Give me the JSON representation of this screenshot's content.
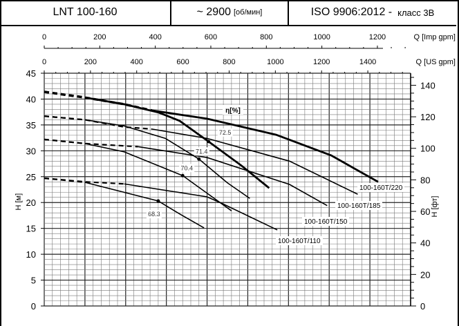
{
  "header": {
    "model": "LNT 100-160",
    "speed_value": "~ 2900",
    "speed_unit": "[об/мин]",
    "standard": "ISO 9906:2012 -",
    "class_label": "класс 3B"
  },
  "chart_data": {
    "type": "line",
    "x_unit": "m3/h",
    "xlim": [
      0,
      360
    ],
    "ylim": [
      0,
      45
    ],
    "ylabel": "H [м]",
    "ylabel_right": "H [фт]",
    "grid": true,
    "top_axes": [
      {
        "label": "Q [Imp gpm]",
        "ticks": [
          0,
          200,
          400,
          600,
          800,
          1000,
          1200
        ],
        "m3h_per_unit": 0.2728
      },
      {
        "label": "Q [US gpm]",
        "ticks": [
          0,
          200,
          400,
          600,
          800,
          1000,
          1200,
          1400
        ],
        "m3h_per_unit": 0.2271
      }
    ],
    "y_ticks": [
      0,
      5,
      10,
      15,
      20,
      25,
      30,
      35,
      40,
      45
    ],
    "y_right_ticks": [
      0,
      20,
      40,
      60,
      80,
      100,
      120,
      140
    ],
    "ft_per_m": 3.281,
    "efficiency_label": "η[%]",
    "head_curves": [
      {
        "name": "100-160T/220",
        "dashed": [
          [
            0,
            41.4
          ],
          [
            40,
            40.3
          ],
          [
            78.6,
            39.0
          ],
          [
            105.8,
            37.8
          ]
        ],
        "solid": [
          [
            105.8,
            37.8
          ],
          [
            160,
            36.2
          ],
          [
            227.8,
            33.1
          ],
          [
            282,
            29.1
          ],
          [
            328,
            24.0
          ]
        ]
      },
      {
        "name": "100-160T/185",
        "dashed": [
          [
            0,
            36.7
          ],
          [
            40,
            36.0
          ],
          [
            78.6,
            34.6
          ],
          [
            105.8,
            34.2
          ]
        ],
        "solid": [
          [
            105.8,
            34.2
          ],
          [
            160,
            32.4
          ],
          [
            241,
            28.0
          ],
          [
            308,
            21.6
          ]
        ]
      },
      {
        "name": "100-160T/150",
        "dashed": [
          [
            0,
            32.2
          ],
          [
            40,
            31.4
          ],
          [
            92,
            30.8
          ]
        ],
        "solid": [
          [
            92,
            30.8
          ],
          [
            160,
            28.7
          ],
          [
            241,
            23.5
          ],
          [
            278,
            19.4
          ]
        ]
      },
      {
        "name": "100-160T/110",
        "dashed": [
          [
            0,
            24.7
          ],
          [
            40,
            24.0
          ],
          [
            78.6,
            23.6
          ]
        ],
        "solid": [
          [
            78.6,
            23.6
          ],
          [
            160,
            21.1
          ],
          [
            175,
            19.8
          ],
          [
            229,
            14.7
          ]
        ]
      }
    ],
    "steep_curves": [
      {
        "dashed": [
          [
            0,
            41.4
          ],
          [
            40,
            40.3
          ]
        ],
        "solid": [
          [
            40,
            40.3
          ],
          [
            78.6,
            39.0
          ],
          [
            112.5,
            37.4
          ],
          [
            132.9,
            35.8
          ],
          [
            161.4,
            31.8
          ],
          [
            194,
            27.1
          ],
          [
            221,
            22.8
          ]
        ],
        "thick": true
      },
      {
        "dashed": [
          [
            0,
            36.7
          ],
          [
            40,
            36.0
          ]
        ],
        "solid": [
          [
            40,
            36.0
          ],
          [
            78.6,
            34.8
          ],
          [
            119,
            32.4
          ],
          [
            152,
            28.4
          ],
          [
            180,
            23.8
          ],
          [
            202,
            20.8
          ]
        ]
      },
      {
        "dashed": [
          [
            0,
            32.2
          ],
          [
            40,
            31.4
          ]
        ],
        "solid": [
          [
            40,
            31.4
          ],
          [
            78.6,
            29.8
          ],
          [
            136,
            25.2
          ],
          [
            160,
            21.8
          ],
          [
            184,
            18.4
          ]
        ]
      },
      {
        "dashed": [
          [
            0,
            24.7
          ],
          [
            40,
            23.9
          ]
        ],
        "solid": [
          [
            40,
            23.9
          ],
          [
            112,
            20.3
          ],
          [
            133,
            17.8
          ],
          [
            157,
            15.1
          ]
        ]
      }
    ],
    "efficiency_points": [
      {
        "label": "72.5",
        "q": 161.4,
        "h": 31.8
      },
      {
        "label": "71.4",
        "q": 152,
        "h": 28.4
      },
      {
        "label": "70.4",
        "q": 136,
        "h": 25.2
      },
      {
        "label": "68.3",
        "q": 112,
        "h": 20.3
      }
    ]
  }
}
